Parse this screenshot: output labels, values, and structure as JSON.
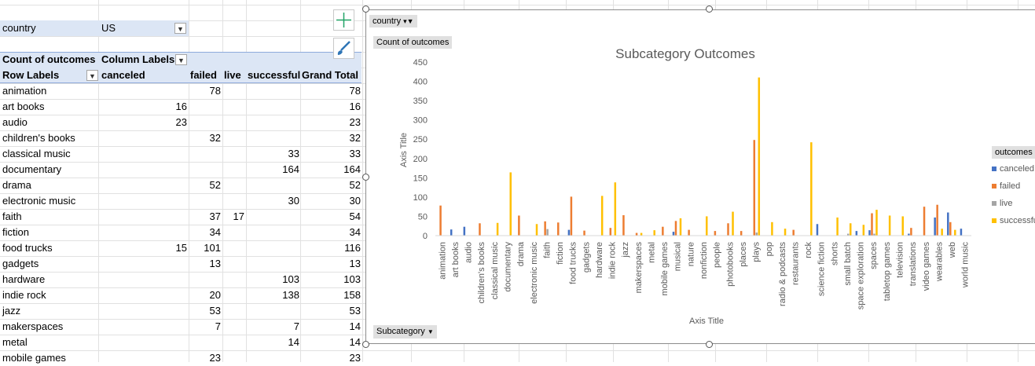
{
  "pivot": {
    "filter_field": "country",
    "filter_value": "US",
    "header_value_label": "Count of outcomes",
    "column_labels": "Column Labels",
    "row_labels": "Row Labels",
    "col_headers": [
      "canceled",
      "failed",
      "live",
      "successful",
      "Grand Total"
    ],
    "rows": [
      {
        "label": "animation",
        "canceled": "",
        "failed": "78",
        "live": "",
        "successful": "",
        "total": "78"
      },
      {
        "label": "art books",
        "canceled": "16",
        "failed": "",
        "live": "",
        "successful": "",
        "total": "16"
      },
      {
        "label": "audio",
        "canceled": "23",
        "failed": "",
        "live": "",
        "successful": "",
        "total": "23"
      },
      {
        "label": "children's books",
        "canceled": "",
        "failed": "32",
        "live": "",
        "successful": "",
        "total": "32"
      },
      {
        "label": "classical music",
        "canceled": "",
        "failed": "",
        "live": "",
        "successful": "33",
        "total": "33"
      },
      {
        "label": "documentary",
        "canceled": "",
        "failed": "",
        "live": "",
        "successful": "164",
        "total": "164"
      },
      {
        "label": "drama",
        "canceled": "",
        "failed": "52",
        "live": "",
        "successful": "",
        "total": "52"
      },
      {
        "label": "electronic music",
        "canceled": "",
        "failed": "",
        "live": "",
        "successful": "30",
        "total": "30"
      },
      {
        "label": "faith",
        "canceled": "",
        "failed": "37",
        "live": "17",
        "successful": "",
        "total": "54"
      },
      {
        "label": "fiction",
        "canceled": "",
        "failed": "34",
        "live": "",
        "successful": "",
        "total": "34"
      },
      {
        "label": "food trucks",
        "canceled": "15",
        "failed": "101",
        "live": "",
        "successful": "",
        "total": "116"
      },
      {
        "label": "gadgets",
        "canceled": "",
        "failed": "13",
        "live": "",
        "successful": "",
        "total": "13"
      },
      {
        "label": "hardware",
        "canceled": "",
        "failed": "",
        "live": "",
        "successful": "103",
        "total": "103"
      },
      {
        "label": "indie rock",
        "canceled": "",
        "failed": "20",
        "live": "",
        "successful": "138",
        "total": "158"
      },
      {
        "label": "jazz",
        "canceled": "",
        "failed": "53",
        "live": "",
        "successful": "",
        "total": "53"
      },
      {
        "label": "makerspaces",
        "canceled": "",
        "failed": "7",
        "live": "",
        "successful": "7",
        "total": "14"
      },
      {
        "label": "metal",
        "canceled": "",
        "failed": "",
        "live": "",
        "successful": "14",
        "total": "14"
      },
      {
        "label": "mobile games",
        "canceled": "",
        "failed": "23",
        "live": "",
        "successful": "",
        "total": "23"
      }
    ]
  },
  "chart_buttons": {
    "country": "country",
    "value_field": "Count of outcomes",
    "axis_field": "Subcategory"
  },
  "legend_title": "outcomes",
  "chart_data": {
    "type": "bar",
    "title": "Subcategory Outcomes",
    "xlabel": "Axis Title",
    "ylabel": "Axis Title",
    "ylim": [
      0,
      450
    ],
    "yticks": [
      0,
      50,
      100,
      150,
      200,
      250,
      300,
      350,
      400,
      450
    ],
    "grid": false,
    "legend_position": "right",
    "categories": [
      "animation",
      "art books",
      "audio",
      "children's books",
      "classical music",
      "documentary",
      "drama",
      "electronic music",
      "faith",
      "fiction",
      "food trucks",
      "gadgets",
      "hardware",
      "indie rock",
      "jazz",
      "makerspaces",
      "metal",
      "mobile games",
      "musical",
      "nature",
      "nonfiction",
      "people",
      "photobooks",
      "places",
      "plays",
      "pop",
      "radio & podcasts",
      "restaurants",
      "rock",
      "science fiction",
      "shorts",
      "small batch",
      "space exploration",
      "spaces",
      "tabletop games",
      "television",
      "translations",
      "video games",
      "wearables",
      "web",
      "world music"
    ],
    "series": [
      {
        "name": "canceled",
        "color": "#4472c4",
        "values": [
          0,
          16,
          23,
          0,
          0,
          0,
          0,
          0,
          0,
          0,
          15,
          0,
          0,
          0,
          0,
          0,
          0,
          0,
          10,
          0,
          0,
          0,
          0,
          0,
          0,
          0,
          0,
          0,
          0,
          30,
          0,
          0,
          12,
          14,
          0,
          0,
          5,
          0,
          47,
          60,
          18
        ]
      },
      {
        "name": "failed",
        "color": "#ed7d31",
        "values": [
          78,
          0,
          0,
          32,
          0,
          0,
          52,
          0,
          37,
          34,
          101,
          13,
          0,
          20,
          53,
          7,
          0,
          23,
          38,
          15,
          0,
          12,
          32,
          12,
          248,
          0,
          0,
          15,
          0,
          0,
          0,
          0,
          0,
          58,
          0,
          0,
          20,
          75,
          80,
          35,
          0
        ]
      },
      {
        "name": "live",
        "color": "#a5a5a5",
        "values": [
          0,
          0,
          0,
          0,
          0,
          0,
          0,
          0,
          17,
          0,
          0,
          0,
          0,
          0,
          0,
          0,
          0,
          0,
          0,
          0,
          0,
          0,
          0,
          0,
          8,
          0,
          0,
          0,
          0,
          0,
          0,
          5,
          0,
          5,
          0,
          0,
          0,
          0,
          0,
          0,
          0
        ]
      },
      {
        "name": "successful",
        "color": "#ffc000",
        "values": [
          0,
          0,
          0,
          0,
          33,
          164,
          0,
          30,
          0,
          0,
          0,
          0,
          103,
          138,
          0,
          7,
          14,
          0,
          45,
          0,
          50,
          0,
          62,
          0,
          410,
          35,
          18,
          0,
          242,
          0,
          47,
          32,
          28,
          67,
          52,
          50,
          0,
          0,
          18,
          15,
          0
        ]
      }
    ]
  }
}
